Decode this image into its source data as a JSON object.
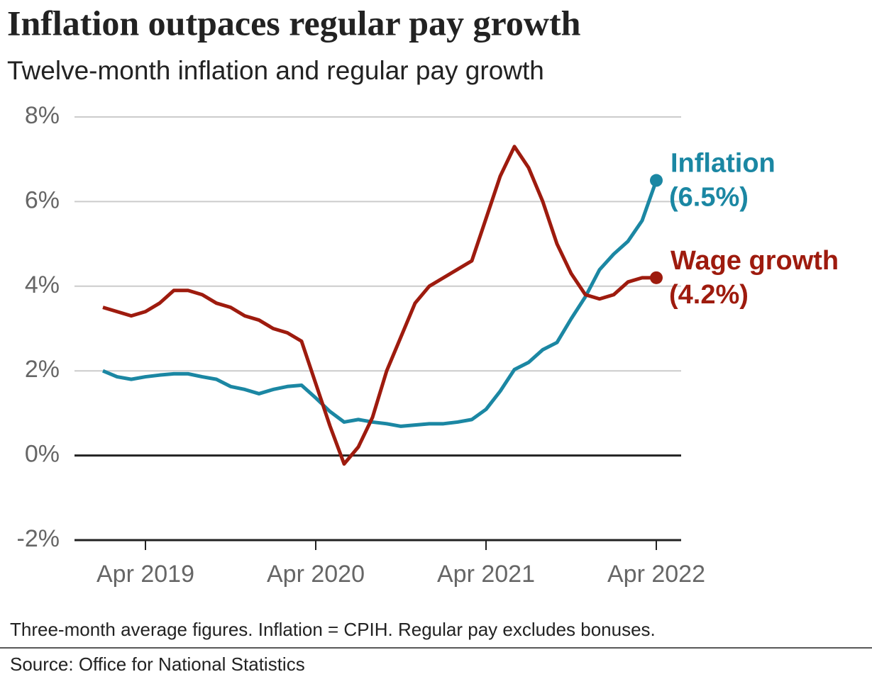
{
  "chart_data": {
    "type": "line",
    "title": "Inflation outpaces regular pay growth",
    "subtitle": "Twelve-month inflation and regular pay growth",
    "footnote": "Three-month average figures. Inflation = CPIH. Regular pay excludes bonuses.",
    "source": "Source: Office for National Statistics",
    "categories": [
      null,
      null,
      null,
      "Apr 2019",
      null,
      null,
      null,
      null,
      null,
      null,
      null,
      null,
      null,
      null,
      null,
      "Apr 2020",
      null,
      null,
      null,
      null,
      null,
      null,
      null,
      null,
      null,
      null,
      null,
      "Apr 2021",
      null,
      null,
      null,
      null,
      null,
      null,
      null,
      null,
      null,
      null,
      null,
      "Apr 2022"
    ],
    "series": [
      {
        "name": "Inflation",
        "color": "#1b87a3",
        "values": [
          2.0,
          1.86,
          1.8,
          1.86,
          1.9,
          1.93,
          1.93,
          1.86,
          1.8,
          1.63,
          1.56,
          1.46,
          1.56,
          1.63,
          1.66,
          1.36,
          1.04,
          0.79,
          0.85,
          0.79,
          0.75,
          0.69,
          0.72,
          0.75,
          0.75,
          0.79,
          0.85,
          1.09,
          1.52,
          2.03,
          2.2,
          2.5,
          2.67,
          3.23,
          3.75,
          4.39,
          4.76,
          5.06,
          5.55,
          6.5
        ],
        "value_labels": [
          null,
          null,
          null,
          null,
          null,
          null,
          null,
          null,
          null,
          null,
          null,
          null,
          null,
          null,
          null,
          null,
          null,
          null,
          null,
          null,
          null,
          null,
          null,
          null,
          null,
          null,
          null,
          null,
          null,
          null,
          null,
          null,
          null,
          null,
          null,
          null,
          null,
          null,
          null,
          "(6.5%)"
        ]
      },
      {
        "name": "Wage growth",
        "color": "#9e1b0e",
        "values": [
          3.5,
          3.4,
          3.3,
          3.4,
          3.6,
          3.9,
          3.9,
          3.8,
          3.6,
          3.5,
          3.3,
          3.2,
          3.0,
          2.9,
          2.7,
          1.7,
          0.7,
          -0.2,
          0.2,
          0.9,
          2.0,
          2.8,
          3.6,
          4.0,
          4.2,
          4.4,
          4.6,
          5.6,
          6.6,
          7.3,
          6.8,
          6.0,
          5.0,
          4.3,
          3.8,
          3.7,
          3.8,
          4.1,
          4.2,
          4.2
        ],
        "value_labels": [
          null,
          null,
          null,
          null,
          null,
          null,
          null,
          null,
          null,
          null,
          null,
          null,
          null,
          null,
          null,
          null,
          null,
          null,
          null,
          null,
          null,
          null,
          null,
          null,
          null,
          null,
          null,
          null,
          null,
          null,
          null,
          null,
          null,
          null,
          null,
          null,
          null,
          null,
          null,
          "(4.2%)"
        ]
      }
    ],
    "ylim": [
      -2,
      8
    ],
    "yticks": [
      {
        "value": -2,
        "label": "-2%"
      },
      {
        "value": 0,
        "label": "0%"
      },
      {
        "value": 2,
        "label": "2%"
      },
      {
        "value": 4,
        "label": "4%"
      },
      {
        "value": 6,
        "label": "6%"
      },
      {
        "value": 8,
        "label": "8%"
      }
    ],
    "grid": true
  }
}
